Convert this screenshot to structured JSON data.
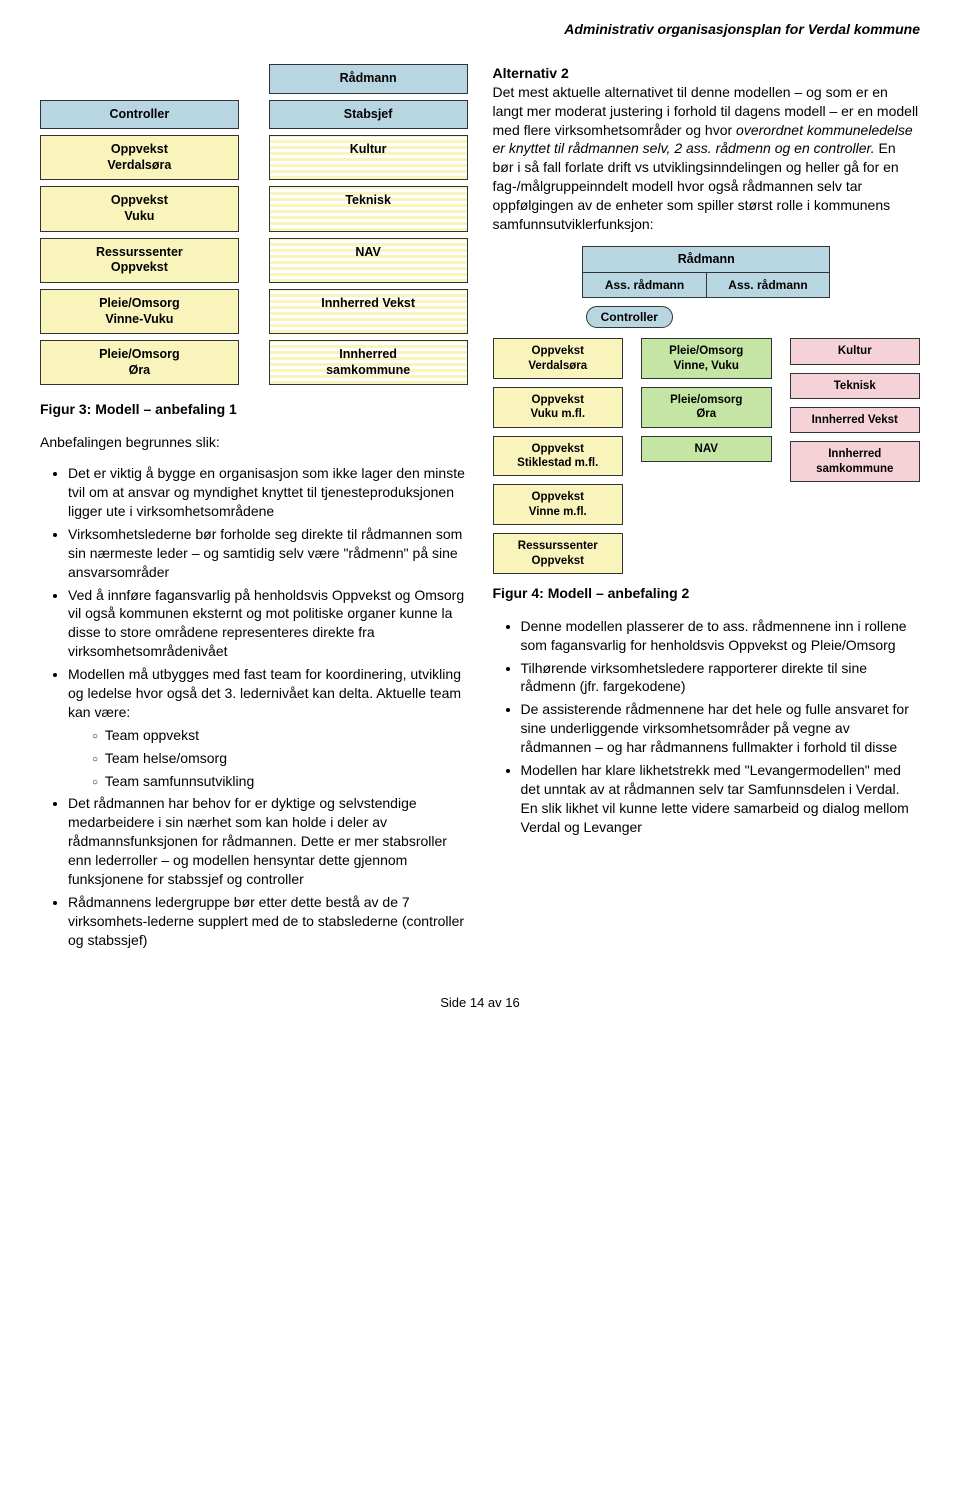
{
  "header": "Administrativ organisasjonsplan for Verdal kommune",
  "fig3": {
    "radmann": "Rådmann",
    "controller": "Controller",
    "stabsjef": "Stabsjef",
    "left": [
      "Oppvekst\nVerdalsøra",
      "Oppvekst\nVuku",
      "Ressurssenter\nOppvekst",
      "Pleie/Omsorg\nVinne-Vuku",
      "Pleie/Omsorg\nØra"
    ],
    "right": [
      "Kultur",
      "Teknisk",
      "NAV",
      "Innherred Vekst",
      "Innherred\nsamkommune"
    ],
    "caption": "Figur 3: Modell – anbefaling 1"
  },
  "left_body": {
    "intro": "Anbefalingen begrunnes slik:",
    "bullets": [
      "Det er viktig å bygge en organisasjon som ikke lager den minste tvil om at ansvar og myndighet knyttet til tjenesteproduksjonen ligger ute i virksomhetsområdene",
      "Virksomhetslederne bør forholde seg direkte til rådmannen som sin nærmeste leder – og samtidig selv være \"rådmenn\" på sine ansvarsområder",
      "Ved å innføre fagansvarlig på henholdsvis Oppvekst og Omsorg vil også kommunen eksternt og mot politiske organer kunne la disse to store områdene representeres direkte fra virksomhetsområdenivået",
      "Modellen må utbygges med fast team for koordinering, utvikling og ledelse hvor også det 3. ledernivået kan delta. Aktuelle team kan være:",
      "Det rådmannen har behov for er dyktige og selvstendige medarbeidere i sin nærhet som kan holde i deler av rådmannsfunksjonen for rådmannen. Dette er mer stabsroller enn lederroller – og modellen hensyntar dette gjennom funksjonene for stabssjef og controller",
      "Rådmannens ledergruppe bør etter dette bestå av de 7 virksomhets-lederne supplert med de to stabslederne (controller og stabssjef)"
    ],
    "sub_teams": [
      "Team oppvekst",
      "Team helse/omsorg",
      "Team samfunnsutvikling"
    ]
  },
  "right_body": {
    "alt_title": "Alternativ 2",
    "alt_text_a": "Det mest aktuelle alternativet til denne modellen – og som er en langt mer moderat justering i forhold til dagens modell – er en modell med flere virksomhetsområder og hvor ",
    "alt_text_italic": "overordnet kommuneledelse er knyttet til rådmannen selv, 2 ass. rådmenn og en controller.",
    "alt_text_b": " En bør i så fall forlate drift vs utviklingsinndelingen og heller gå for en fag-/målgruppeinndelt modell hvor også rådmannen selv tar oppfølgingen av de enheter som spiller størst rolle i kommunens samfunnsutviklerfunksjon:"
  },
  "fig4": {
    "radmann": "Rådmann",
    "ass1": "Ass. rådmann",
    "ass2": "Ass. rådmann",
    "controller": "Controller",
    "col_left": [
      "Oppvekst\nVerdalsøra",
      "Oppvekst\nVuku m.fl.",
      "Oppvekst\nStiklestad m.fl.",
      "Oppvekst\nVinne m.fl.",
      "Ressurssenter\nOppvekst"
    ],
    "col_mid": [
      "Pleie/Omsorg\nVinne, Vuku",
      "Pleie/omsorg\nØra",
      "NAV"
    ],
    "col_right": [
      "Kultur",
      "Teknisk",
      "Innherred Vekst",
      "Innherred\nsamkommune"
    ],
    "caption": "Figur 4: Modell – anbefaling 2"
  },
  "right_bullets": [
    "Denne modellen plasserer de to ass. rådmennene inn i rollene som fagansvarlig for henholdsvis Oppvekst og Pleie/Omsorg",
    "Tilhørende virksomhetsledere rapporterer direkte til sine rådmenn (jfr. fargekodene)",
    "De assisterende rådmennene har det hele og fulle ansvaret for sine underliggende virksomhetsområder på vegne av rådmannen – og har rådmannens fullmakter i forhold til disse",
    "Modellen har klare likhetstrekk med \"Levangermodellen\" med det unntak av at rådmannen selv tar Samfunnsdelen i Verdal. En slik likhet vil kunne lette videre samarbeid og dialog mellom Verdal og Levanger"
  ],
  "footer": "Side 14 av 16"
}
